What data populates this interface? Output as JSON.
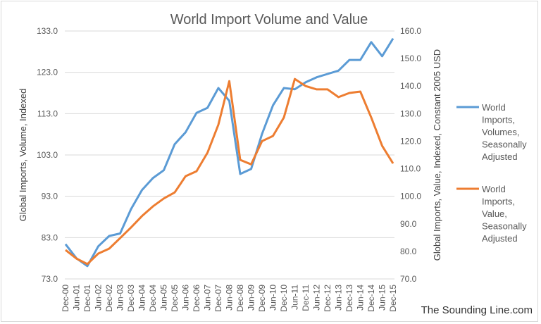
{
  "chart_data": {
    "type": "line",
    "title": "World Import Volume and Value",
    "ylabel": "Global Imports, Volume, Indexed",
    "y2label": "Global Imports, Value, Indexed, Constant 2005 USD",
    "ylim": [
      73,
      133
    ],
    "y2lim": [
      70,
      160
    ],
    "yticks": [
      "73.0",
      "83.0",
      "93.0",
      "103.0",
      "113.0",
      "123.0",
      "133.0"
    ],
    "y2ticks": [
      "70.0",
      "80.0",
      "90.0",
      "100.0",
      "110.0",
      "120.0",
      "130.0",
      "140.0",
      "150.0",
      "160.0"
    ],
    "grid": true,
    "legend_position": "right",
    "categories": [
      "Dec-00",
      "Jun-01",
      "Dec-01",
      "Jun-02",
      "Dec-02",
      "Jun-03",
      "Dec-03",
      "Jun-04",
      "Dec-04",
      "Jun-05",
      "Dec-05",
      "Jun-06",
      "Dec-06",
      "Jun-07",
      "Dec-07",
      "Jun-08",
      "Dec-08",
      "Jun-09",
      "Dec-09",
      "Jun-10",
      "Dec-10",
      "Jun-11",
      "Dec-11",
      "Jun-12",
      "Dec-12",
      "Jun-13",
      "Dec-13",
      "Jun-14",
      "Dec-14",
      "Jun-15",
      "Dec-15"
    ],
    "series": [
      {
        "name": "World Imports, Volumes, Seasonally Adjusted",
        "axis": "left",
        "color": "#5b9bd5",
        "values": [
          81.4,
          78.0,
          76.1,
          80.9,
          83.4,
          84.0,
          89.9,
          94.5,
          97.4,
          99.3,
          105.6,
          108.5,
          113.2,
          114.4,
          119.2,
          116.1,
          98.4,
          99.6,
          108.1,
          115.0,
          119.2,
          118.9,
          120.6,
          121.8,
          122.6,
          123.4,
          126.0,
          126.0,
          130.3,
          126.9,
          131.2
        ]
      },
      {
        "name": "World Imports, Value, Seasonally Adjusted",
        "axis": "right",
        "color": "#ed7d31",
        "values": [
          80.5,
          77.4,
          75.4,
          79.2,
          81.0,
          84.8,
          88.7,
          92.8,
          96.3,
          99.2,
          101.4,
          107.3,
          109.1,
          115.8,
          126.0,
          141.8,
          113.2,
          111.6,
          120.0,
          121.9,
          128.6,
          142.6,
          140.0,
          138.8,
          138.8,
          136.0,
          137.5,
          138.0,
          128.6,
          118.3,
          111.9
        ]
      }
    ],
    "legend": [
      {
        "lines": [
          "World",
          "Imports,",
          "Volumes,",
          "Seasonally",
          "Adjusted"
        ]
      },
      {
        "lines": [
          "World",
          "Imports,",
          "Value,",
          "Seasonally",
          "Adjusted"
        ]
      }
    ]
  },
  "watermark": "The Sounding Line.com"
}
